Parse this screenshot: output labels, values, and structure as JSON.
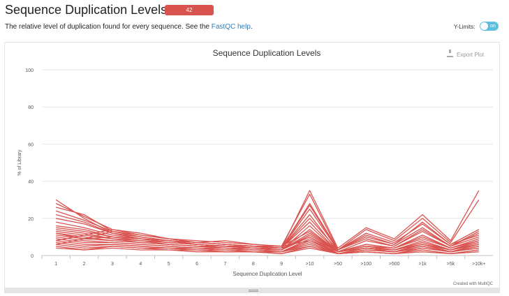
{
  "header": {
    "title": "Sequence Duplication Levels",
    "badge": "42",
    "description_pre": "The relative level of duplication found for every sequence. See the ",
    "link_text": "FastQC help",
    "description_post": ".",
    "ylimits_label": "Y-Limits:",
    "toggle_text": "on"
  },
  "export_label": "Export Plot",
  "credit": "Created with MultiQC",
  "colors": {
    "series": "#d9534f",
    "grid": "#e6e6e6",
    "toggle": "#5bc0de"
  },
  "chart_data": {
    "type": "line",
    "title": "Sequence Duplication Levels",
    "xlabel": "Sequence Duplication Level",
    "ylabel": "% of Library",
    "categories": [
      "1",
      "2",
      "3",
      "4",
      "5",
      "6",
      "7",
      "8",
      "9",
      ">10",
      ">50",
      ">100",
      ">500",
      ">1k",
      ">5k",
      ">10k+"
    ],
    "yticks": [
      0,
      20,
      40,
      60,
      80,
      100
    ],
    "ylim": [
      0,
      100
    ],
    "series": [
      {
        "values": [
          30,
          20,
          12,
          10,
          8,
          6,
          5,
          4,
          4,
          35,
          4,
          15,
          9,
          22,
          8,
          35
        ]
      },
      {
        "values": [
          28,
          21,
          14,
          11,
          9,
          7,
          6,
          5,
          5,
          33,
          3,
          14,
          8,
          20,
          7,
          30
        ]
      },
      {
        "values": [
          26,
          22,
          13,
          10,
          8,
          7,
          6,
          5,
          4,
          28,
          3,
          12,
          7,
          17,
          6,
          14
        ]
      },
      {
        "values": [
          22,
          18,
          12,
          9,
          8,
          7,
          6,
          5,
          4,
          25,
          3,
          10,
          6,
          15,
          5,
          12
        ]
      },
      {
        "values": [
          18,
          15,
          11,
          9,
          7,
          6,
          5,
          4,
          4,
          22,
          2,
          8,
          5,
          13,
          5,
          10
        ]
      },
      {
        "values": [
          16,
          14,
          10,
          8,
          7,
          6,
          5,
          5,
          4,
          18,
          2,
          6,
          4,
          11,
          4,
          9
        ]
      },
      {
        "values": [
          15,
          13,
          10,
          8,
          7,
          6,
          5,
          4,
          3,
          16,
          2,
          5,
          4,
          9,
          4,
          8
        ]
      },
      {
        "values": [
          14,
          12,
          9,
          8,
          6,
          5,
          5,
          4,
          3,
          14,
          2,
          5,
          3,
          8,
          3,
          8
        ]
      },
      {
        "values": [
          13,
          11,
          9,
          7,
          6,
          5,
          4,
          4,
          3,
          12,
          2,
          4,
          3,
          7,
          3,
          7
        ]
      },
      {
        "values": [
          12,
          10,
          8,
          7,
          6,
          5,
          4,
          3,
          3,
          11,
          2,
          4,
          3,
          6,
          3,
          6
        ]
      },
      {
        "values": [
          11,
          9,
          8,
          7,
          6,
          5,
          4,
          3,
          3,
          10,
          1,
          4,
          2,
          6,
          2,
          6
        ]
      },
      {
        "values": [
          10,
          8,
          7,
          6,
          5,
          4,
          4,
          3,
          2,
          9,
          1,
          3,
          2,
          5,
          2,
          5
        ]
      },
      {
        "values": [
          9,
          7,
          7,
          6,
          5,
          4,
          3,
          3,
          2,
          8,
          1,
          3,
          2,
          5,
          2,
          5
        ]
      },
      {
        "values": [
          8,
          6,
          6,
          5,
          4,
          4,
          3,
          2,
          2,
          7,
          1,
          3,
          2,
          4,
          2,
          4
        ]
      },
      {
        "values": [
          7,
          5,
          6,
          5,
          4,
          3,
          3,
          2,
          2,
          6,
          1,
          2,
          1,
          4,
          2,
          4
        ]
      },
      {
        "values": [
          6,
          4,
          5,
          4,
          4,
          3,
          2,
          2,
          2,
          5,
          1,
          2,
          1,
          3,
          1,
          3
        ]
      },
      {
        "values": [
          5,
          3,
          5,
          4,
          3,
          3,
          2,
          2,
          1,
          5,
          1,
          2,
          1,
          3,
          1,
          3
        ]
      },
      {
        "values": [
          20,
          17,
          12,
          9,
          7,
          6,
          5,
          4,
          4,
          20,
          3,
          9,
          5,
          14,
          5,
          13
        ]
      },
      {
        "values": [
          24,
          19,
          13,
          10,
          8,
          6,
          5,
          4,
          4,
          27,
          3,
          11,
          6,
          18,
          6,
          11
        ]
      },
      {
        "values": [
          12,
          9,
          13,
          11,
          9,
          8,
          7,
          6,
          5,
          13,
          2,
          6,
          4,
          10,
          4,
          9
        ]
      },
      {
        "values": [
          8,
          11,
          14,
          12,
          9,
          7,
          6,
          5,
          4,
          10,
          2,
          5,
          3,
          7,
          3,
          7
        ]
      },
      {
        "values": [
          6,
          9,
          10,
          9,
          8,
          7,
          8,
          6,
          5,
          8,
          2,
          4,
          3,
          6,
          3,
          6
        ]
      },
      {
        "values": [
          4,
          3,
          4,
          3,
          3,
          2,
          2,
          2,
          1,
          4,
          1,
          2,
          1,
          2,
          1,
          2
        ]
      }
    ]
  }
}
